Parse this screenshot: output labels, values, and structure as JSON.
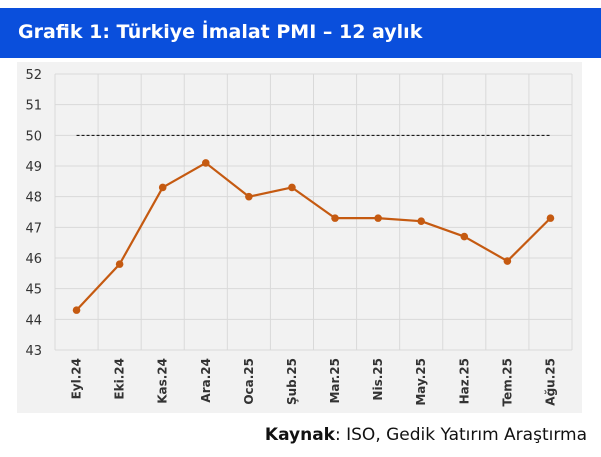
{
  "title": "Grafik 1: Türkiye İmalat PMI – 12 aylık",
  "source": {
    "label": "Kaynak",
    "text": ": ISO, Gedik Yatırım Araştırma"
  },
  "colors": {
    "title_bg": "#0a4fdc",
    "line": "#c55a11",
    "plot_bg": "#f2f2f2",
    "grid": "#d9d9d9",
    "reference": "#000000"
  },
  "chart_data": {
    "type": "line",
    "title": "",
    "xlabel": "",
    "ylabel": "",
    "categories": [
      "Eyl.24",
      "Eki.24",
      "Kas.24",
      "Ara.24",
      "Oca.25",
      "Şub.25",
      "Mar.25",
      "Nis.25",
      "May.25",
      "Haz.25",
      "Tem.25",
      "Ağu.25"
    ],
    "series": [
      {
        "values": [
          44.3,
          45.8,
          48.3,
          49.1,
          48.0,
          48.3,
          47.3,
          47.3,
          47.2,
          46.7,
          45.9,
          47.3
        ]
      }
    ],
    "reference_line": {
      "value": 50,
      "style": "dashed"
    },
    "ylim": [
      43,
      52
    ],
    "yticks": [
      43,
      44,
      45,
      46,
      47,
      48,
      49,
      50,
      51,
      52
    ],
    "grid": true,
    "legend": "none"
  }
}
